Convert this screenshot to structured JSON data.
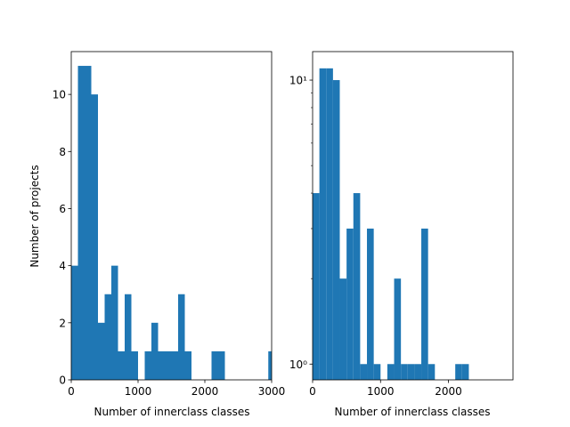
{
  "chart_data": [
    {
      "type": "bar",
      "subtype": "histogram",
      "xlabel": "Number of innerclass classes",
      "ylabel": "Number of projects",
      "yscale": "linear",
      "xlim": [
        0,
        3000
      ],
      "ylim": [
        0,
        11.5
      ],
      "xticks": [
        0,
        1000,
        2000,
        3000
      ],
      "xtick_labels": [
        "0",
        "1000",
        "2000",
        "3000"
      ],
      "yticks": [
        0,
        2,
        4,
        6,
        8,
        10
      ],
      "ytick_labels": [
        "0",
        "2",
        "4",
        "6",
        "8",
        "10"
      ],
      "bin_width": 100,
      "bins": [
        {
          "x0": 0,
          "x1": 100,
          "value": 4
        },
        {
          "x0": 100,
          "x1": 200,
          "value": 11
        },
        {
          "x0": 200,
          "x1": 300,
          "value": 11
        },
        {
          "x0": 300,
          "x1": 400,
          "value": 10
        },
        {
          "x0": 400,
          "x1": 500,
          "value": 2
        },
        {
          "x0": 500,
          "x1": 600,
          "value": 3
        },
        {
          "x0": 600,
          "x1": 700,
          "value": 4
        },
        {
          "x0": 700,
          "x1": 800,
          "value": 1
        },
        {
          "x0": 800,
          "x1": 900,
          "value": 3
        },
        {
          "x0": 900,
          "x1": 1000,
          "value": 1
        },
        {
          "x0": 1100,
          "x1": 1200,
          "value": 1
        },
        {
          "x0": 1200,
          "x1": 1300,
          "value": 2
        },
        {
          "x0": 1300,
          "x1": 1400,
          "value": 1
        },
        {
          "x0": 1400,
          "x1": 1500,
          "value": 1
        },
        {
          "x0": 1500,
          "x1": 1600,
          "value": 1
        },
        {
          "x0": 1600,
          "x1": 1700,
          "value": 3
        },
        {
          "x0": 1700,
          "x1": 1800,
          "value": 1
        },
        {
          "x0": 2100,
          "x1": 2200,
          "value": 1
        },
        {
          "x0": 2200,
          "x1": 2300,
          "value": 1
        },
        {
          "x0": 2950,
          "x1": 3050,
          "value": 1
        }
      ],
      "bar_color": "#1f77b4",
      "grid": false
    },
    {
      "type": "bar",
      "subtype": "histogram",
      "xlabel": "Number of innerclass classes",
      "ylabel": "",
      "yscale": "log",
      "xlim": [
        0,
        2950
      ],
      "ylim": [
        0.88,
        12.6
      ],
      "xticks": [
        0,
        1000,
        2000
      ],
      "xtick_labels": [
        "0",
        "1000",
        "2000"
      ],
      "yticks": [
        1,
        10
      ],
      "ytick_labels": [
        "10⁰",
        "10¹"
      ],
      "bin_width": 100,
      "bins": [
        {
          "x0": 0,
          "x1": 100,
          "value": 4
        },
        {
          "x0": 100,
          "x1": 200,
          "value": 11
        },
        {
          "x0": 200,
          "x1": 300,
          "value": 11
        },
        {
          "x0": 300,
          "x1": 400,
          "value": 10
        },
        {
          "x0": 400,
          "x1": 500,
          "value": 2
        },
        {
          "x0": 500,
          "x1": 600,
          "value": 3
        },
        {
          "x0": 600,
          "x1": 700,
          "value": 4
        },
        {
          "x0": 700,
          "x1": 800,
          "value": 1
        },
        {
          "x0": 800,
          "x1": 900,
          "value": 3
        },
        {
          "x0": 900,
          "x1": 1000,
          "value": 1
        },
        {
          "x0": 1100,
          "x1": 1200,
          "value": 1
        },
        {
          "x0": 1200,
          "x1": 1300,
          "value": 2
        },
        {
          "x0": 1300,
          "x1": 1400,
          "value": 1
        },
        {
          "x0": 1400,
          "x1": 1500,
          "value": 1
        },
        {
          "x0": 1500,
          "x1": 1600,
          "value": 1
        },
        {
          "x0": 1600,
          "x1": 1700,
          "value": 3
        },
        {
          "x0": 1700,
          "x1": 1800,
          "value": 1
        },
        {
          "x0": 2100,
          "x1": 2200,
          "value": 1
        },
        {
          "x0": 2200,
          "x1": 2300,
          "value": 1
        }
      ],
      "bar_color": "#1f77b4",
      "grid": false
    }
  ]
}
